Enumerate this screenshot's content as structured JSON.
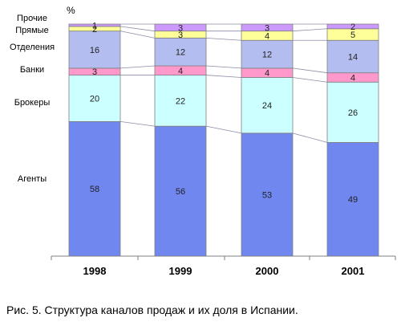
{
  "caption": "Рис. 5. Структура каналов продаж и их доля в Испании.",
  "chart_data": {
    "type": "bar",
    "stacked": true,
    "title": "",
    "unit_label": "%",
    "categories": [
      "1998",
      "1999",
      "2000",
      "2001"
    ],
    "ylim": [
      0,
      100
    ],
    "grid": false,
    "legend": "left",
    "series": [
      {
        "name": "Агенты",
        "values": [
          58,
          56,
          53,
          49
        ],
        "color": "#6f87ef"
      },
      {
        "name": "Брокеры",
        "values": [
          20,
          22,
          24,
          26
        ],
        "color": "#ccffff"
      },
      {
        "name": "Банки",
        "values": [
          3,
          4,
          4,
          4
        ],
        "color": "#ff99cc"
      },
      {
        "name": "Отделения",
        "values": [
          16,
          12,
          12,
          14
        ],
        "color": "#b3bdef"
      },
      {
        "name": "Прямые",
        "values": [
          2,
          3,
          4,
          5
        ],
        "color": "#ffff99"
      },
      {
        "name": "Прочие",
        "values": [
          1,
          3,
          3,
          2
        ],
        "color": "#cc99ff"
      }
    ]
  }
}
